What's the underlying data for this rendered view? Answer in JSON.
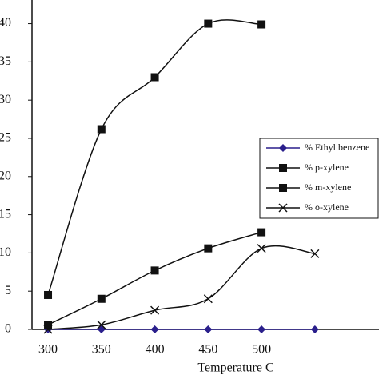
{
  "chart_data": {
    "type": "line",
    "x_label": "Temperature C",
    "x": [
      300,
      350,
      400,
      450,
      500,
      550
    ],
    "series": [
      {
        "name": "% Ethyl benzene",
        "color": "#2a1f8c",
        "marker": "diamond",
        "values": [
          0,
          0,
          0,
          0,
          0,
          0
        ]
      },
      {
        "name": "% p-xylene",
        "color": "#111111",
        "marker": "square",
        "values": [
          4.5,
          26.2,
          33,
          40,
          39.9,
          null
        ]
      },
      {
        "name": "% m-xylene",
        "color": "#111111",
        "marker": "square",
        "values": [
          0.6,
          4,
          7.7,
          10.6,
          12.7,
          null
        ]
      },
      {
        "name": "% o-xylene",
        "color": "#111111",
        "marker": "x",
        "values": [
          0,
          0.6,
          2.5,
          4,
          10.6,
          9.9
        ]
      }
    ],
    "xlim": [
      285,
      610
    ],
    "xticks": [
      300,
      350,
      400,
      450,
      500
    ],
    "ylim": [
      0,
      41
    ],
    "yticks": [
      0,
      5,
      10,
      15,
      20,
      25,
      30,
      35,
      40
    ],
    "grid": false,
    "legend": "right"
  }
}
